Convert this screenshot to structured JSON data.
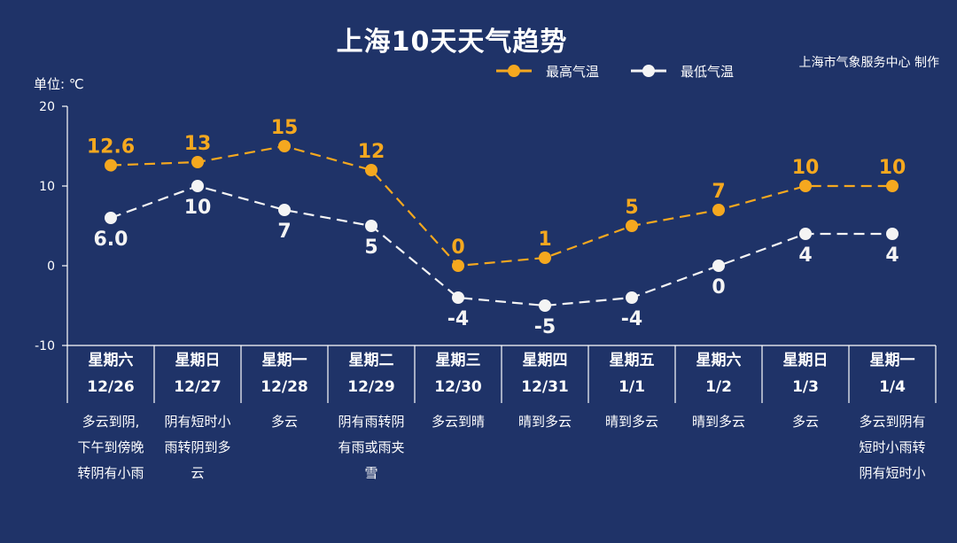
{
  "title": "上海10天天气趋势",
  "credit": "上海市气象服务中心 制作",
  "unit_label": "单位: ℃",
  "colors": {
    "background": "#1f3368",
    "high": "#f5a81f",
    "low": "#f4f4f4",
    "axis": "#ffffff"
  },
  "chart_data": {
    "type": "line",
    "title": "上海10天天气趋势",
    "ylabel": "单位: ℃",
    "ylim": [
      -10,
      20
    ],
    "yticks": [
      -10,
      0,
      10,
      20
    ],
    "legend_position": "top-right",
    "categories": [
      {
        "weekday": "星期六",
        "date": "12/26"
      },
      {
        "weekday": "星期日",
        "date": "12/27"
      },
      {
        "weekday": "星期一",
        "date": "12/28"
      },
      {
        "weekday": "星期二",
        "date": "12/29"
      },
      {
        "weekday": "星期三",
        "date": "12/30"
      },
      {
        "weekday": "星期四",
        "date": "12/31"
      },
      {
        "weekday": "星期五",
        "date": "1/1"
      },
      {
        "weekday": "星期六",
        "date": "1/2"
      },
      {
        "weekday": "星期日",
        "date": "1/3"
      },
      {
        "weekday": "星期一",
        "date": "1/4"
      }
    ],
    "series": [
      {
        "name": "最高气温",
        "values": [
          12.6,
          13,
          15,
          12,
          0,
          1,
          5,
          7,
          10,
          10
        ],
        "labels": [
          "12.6",
          "13",
          "15",
          "12",
          "0",
          "1",
          "5",
          "7",
          "10",
          "10"
        ],
        "color": "#f5a81f"
      },
      {
        "name": "最低气温",
        "values": [
          6.0,
          10,
          7,
          5,
          -4,
          -5,
          -4,
          0,
          4,
          4
        ],
        "labels": [
          "6.0",
          "10",
          "7",
          "5",
          "-4",
          "-5",
          "-4",
          "0",
          "4",
          "4"
        ],
        "color": "#f4f4f4"
      }
    ],
    "descriptions": [
      [
        "多云到阴,",
        "下午到傍晚",
        "转阴有小雨"
      ],
      [
        "阴有短时小",
        "雨转阴到多",
        "云"
      ],
      [
        "多云"
      ],
      [
        "阴有雨转阴",
        "有雨或雨夹",
        "雪"
      ],
      [
        "多云到晴"
      ],
      [
        "晴到多云"
      ],
      [
        "晴到多云"
      ],
      [
        "晴到多云"
      ],
      [
        "多云"
      ],
      [
        "多云到阴有",
        "短时小雨转",
        "阴有短时小"
      ]
    ]
  }
}
